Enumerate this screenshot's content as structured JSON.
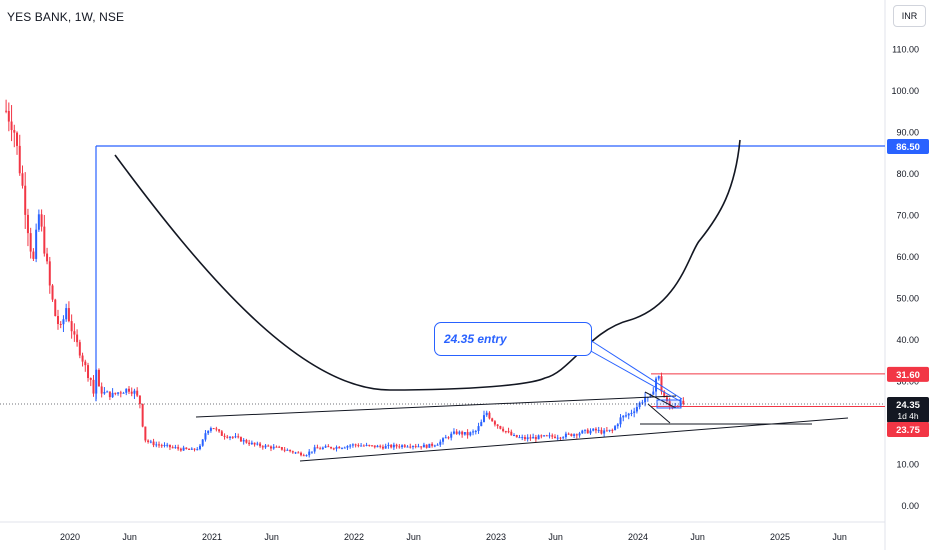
{
  "header": {
    "title": "YES BANK, 1W, NSE"
  },
  "currency_button": {
    "label": "INR"
  },
  "annotation": {
    "text": "24.35 entry"
  },
  "colors": {
    "up": "#2962ff",
    "down": "#f23645",
    "drawing_blue": "#2962ff",
    "drawing_black": "#131722",
    "grid": "#f0f3fa",
    "axis_text": "#131722"
  },
  "price_labels": [
    {
      "text": "86.50",
      "value": 86.5,
      "color": "#2962ff",
      "text_color": "#ffffff"
    },
    {
      "text": "31.60",
      "value": 31.6,
      "color": "#f23645",
      "text_color": "#ffffff"
    },
    {
      "text": "24.35",
      "sub": "1d 4h",
      "value": 24.35,
      "color": "#131722",
      "text_color": "#ffffff"
    },
    {
      "text": "23.75",
      "value": 23.75,
      "color": "#f23645",
      "text_color": "#ffffff"
    }
  ],
  "chart_data": {
    "type": "candlestick",
    "title": "YES BANK, 1W, NSE",
    "ylim": [
      0,
      115
    ],
    "y_ticks": [
      "110.00",
      "100.00",
      "90.00",
      "80.00",
      "70.00",
      "60.00",
      "50.00",
      "40.00",
      "30.00",
      "20.00",
      "10.00",
      "0.00"
    ],
    "y_tick_values": [
      110,
      100,
      90,
      80,
      70,
      60,
      50,
      40,
      30,
      20,
      10,
      0
    ],
    "x_ticks": [
      "2020",
      "Jun",
      "2021",
      "Jun",
      "2022",
      "Jun",
      "2023",
      "Jun",
      "2024",
      "Jun",
      "2025",
      "Jun"
    ],
    "x_tick_dates": [
      2020.0,
      2020.42,
      2021.0,
      2021.42,
      2022.0,
      2022.42,
      2023.0,
      2023.42,
      2024.0,
      2024.42,
      2025.0,
      2025.42
    ],
    "x_range": [
      2019.55,
      2025.72
    ],
    "price_path": [
      [
        2019.55,
        95
      ],
      [
        2019.6,
        92
      ],
      [
        2019.63,
        85
      ],
      [
        2019.66,
        78
      ],
      [
        2019.7,
        68
      ],
      [
        2019.74,
        58
      ],
      [
        2019.78,
        70
      ],
      [
        2019.82,
        62
      ],
      [
        2019.86,
        52
      ],
      [
        2019.9,
        45
      ],
      [
        2019.94,
        42
      ],
      [
        2019.97,
        48
      ],
      [
        2020.0,
        44
      ],
      [
        2020.03,
        40
      ],
      [
        2020.06,
        38
      ],
      [
        2020.09,
        35
      ],
      [
        2020.12,
        32
      ],
      [
        2020.15,
        30
      ],
      [
        2020.17,
        26
      ],
      [
        2020.18,
        34
      ],
      [
        2020.2,
        28
      ],
      [
        2020.24,
        27
      ],
      [
        2020.3,
        26.5
      ],
      [
        2020.36,
        27.5
      ],
      [
        2020.42,
        28
      ],
      [
        2020.46,
        27
      ],
      [
        2020.5,
        24
      ],
      [
        2020.52,
        16
      ],
      [
        2020.56,
        15
      ],
      [
        2020.62,
        14.5
      ],
      [
        2020.7,
        14
      ],
      [
        2020.78,
        13.5
      ],
      [
        2020.86,
        13.2
      ],
      [
        2020.92,
        14
      ],
      [
        2020.96,
        18
      ],
      [
        2021.0,
        19
      ],
      [
        2021.06,
        17
      ],
      [
        2021.14,
        16.5
      ],
      [
        2021.22,
        15.5
      ],
      [
        2021.3,
        14.5
      ],
      [
        2021.4,
        14
      ],
      [
        2021.5,
        13.5
      ],
      [
        2021.6,
        12.5
      ],
      [
        2021.66,
        12.2
      ],
      [
        2021.72,
        13.5
      ],
      [
        2021.8,
        13.8
      ],
      [
        2021.9,
        14
      ],
      [
        2022.0,
        14.5
      ],
      [
        2022.1,
        14.2
      ],
      [
        2022.2,
        14
      ],
      [
        2022.3,
        14.2
      ],
      [
        2022.4,
        14.5
      ],
      [
        2022.46,
        14.2
      ],
      [
        2022.52,
        14.2
      ],
      [
        2022.6,
        15
      ],
      [
        2022.66,
        16.5
      ],
      [
        2022.72,
        17.5
      ],
      [
        2022.8,
        17
      ],
      [
        2022.86,
        17.8
      ],
      [
        2022.9,
        20
      ],
      [
        2022.93,
        22.5
      ],
      [
        2022.96,
        21
      ],
      [
        2023.0,
        19.5
      ],
      [
        2023.06,
        18
      ],
      [
        2023.12,
        16.5
      ],
      [
        2023.2,
        16
      ],
      [
        2023.3,
        16.3
      ],
      [
        2023.4,
        16.5
      ],
      [
        2023.5,
        16.8
      ],
      [
        2023.6,
        17.5
      ],
      [
        2023.7,
        18
      ],
      [
        2023.76,
        17.5
      ],
      [
        2023.82,
        18
      ],
      [
        2023.88,
        21
      ],
      [
        2023.94,
        22
      ],
      [
        2024.0,
        24
      ],
      [
        2024.05,
        26
      ],
      [
        2024.08,
        25
      ],
      [
        2024.1,
        27
      ],
      [
        2024.12,
        30
      ],
      [
        2024.14,
        31.5
      ],
      [
        2024.17,
        27
      ],
      [
        2024.22,
        23.5
      ],
      [
        2024.28,
        24.5
      ],
      [
        2024.32,
        24.35
      ]
    ]
  }
}
